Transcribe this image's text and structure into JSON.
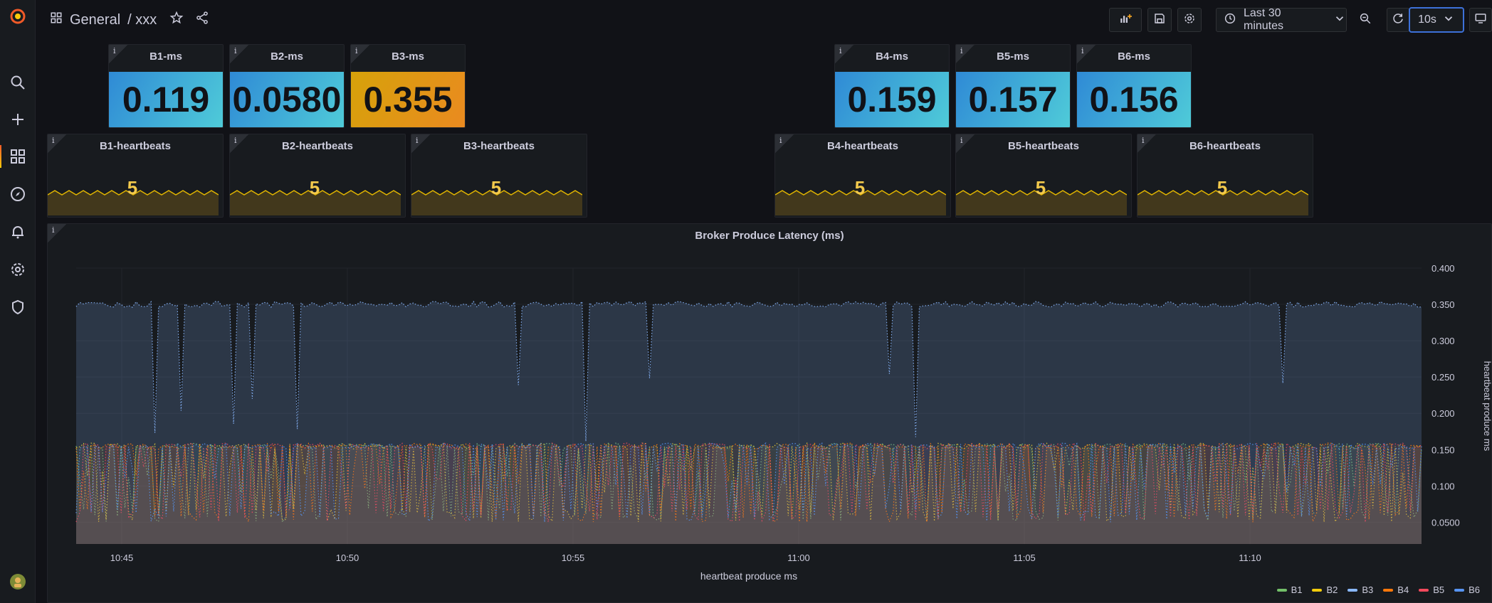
{
  "topbar": {
    "folder": "General",
    "dashboard": "/ xxx",
    "time_range": "Last 30 minutes",
    "refresh": "10s"
  },
  "stats": [
    {
      "title": "B1-ms",
      "value": "0.119",
      "color": "#33a2e5"
    },
    {
      "title": "B2-ms",
      "value": "0.0580",
      "color": "#33a2e5"
    },
    {
      "title": "B3-ms",
      "value": "0.355",
      "color": "#e0b400"
    },
    {
      "title": "B4-ms",
      "value": "0.159",
      "color": "#33a2e5"
    },
    {
      "title": "B5-ms",
      "value": "0.157",
      "color": "#33a2e5"
    },
    {
      "title": "B6-ms",
      "value": "0.156",
      "color": "#33a2e5"
    }
  ],
  "heartbeats": [
    {
      "title": "B1-heartbeats",
      "value": "5"
    },
    {
      "title": "B2-heartbeats",
      "value": "5"
    },
    {
      "title": "B3-heartbeats",
      "value": "5"
    },
    {
      "title": "B4-heartbeats",
      "value": "5"
    },
    {
      "title": "B5-heartbeats",
      "value": "5"
    },
    {
      "title": "B6-heartbeats",
      "value": "5"
    }
  ],
  "panel_info_icon": "i",
  "chart_data": {
    "type": "line",
    "title": "Broker Produce Latency (ms)",
    "xlabel": "heartbeat produce ms",
    "ylabel": "heartbeat produce ms",
    "x_ticks": [
      "10:45",
      "10:50",
      "10:55",
      "11:00",
      "11:05",
      "11:10"
    ],
    "y_ticks": [
      "0.0500",
      "0.100",
      "0.150",
      "0.200",
      "0.250",
      "0.300",
      "0.350",
      "0.400"
    ],
    "ylim": [
      0.02,
      0.4
    ],
    "legend_placement": "bottom-right",
    "series": [
      {
        "name": "B1",
        "color": "#73bf69",
        "base": 0.155
      },
      {
        "name": "B2",
        "color": "#f2cc0c",
        "base": 0.155
      },
      {
        "name": "B3",
        "color": "#8ab8ff",
        "base": 0.35
      },
      {
        "name": "B4",
        "color": "#ff780a",
        "base": 0.155
      },
      {
        "name": "B5",
        "color": "#f2495c",
        "base": 0.155
      },
      {
        "name": "B6",
        "color": "#5794f2",
        "base": 0.155
      }
    ]
  }
}
